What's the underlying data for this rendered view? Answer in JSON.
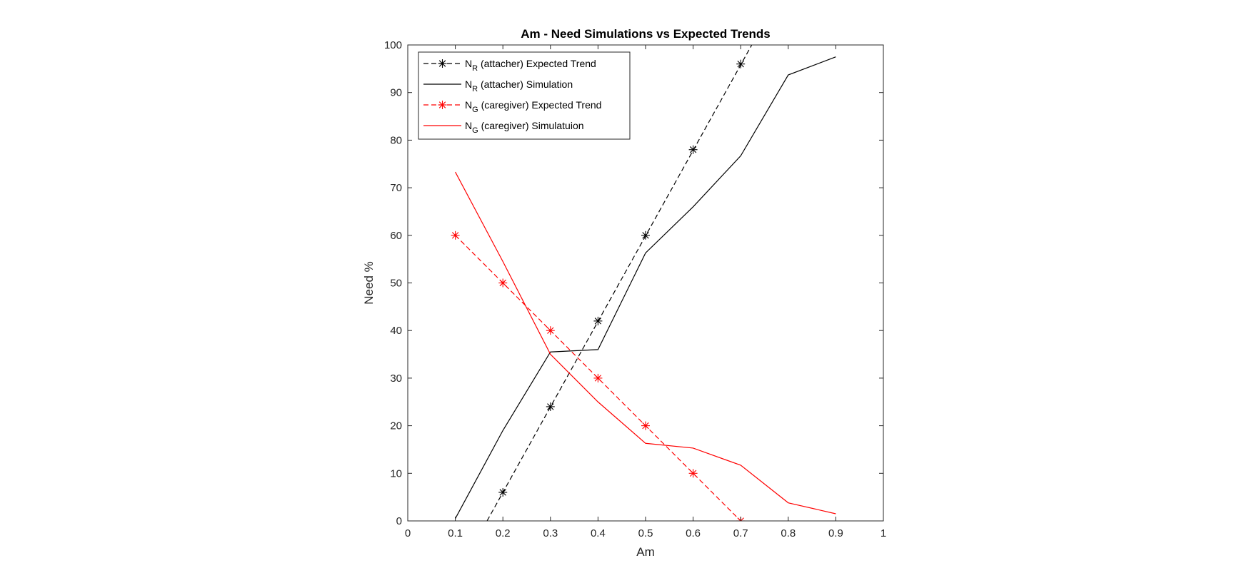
{
  "chart_data": {
    "type": "line",
    "title": "Am - Need Simulations vs Expected Trends",
    "xlabel": "Am",
    "ylabel": "Need %",
    "xlim": [
      0,
      1
    ],
    "ylim": [
      0,
      100
    ],
    "xticks": [
      "0",
      "0.1",
      "0.2",
      "0.3",
      "0.4",
      "0.5",
      "0.6",
      "0.7",
      "0.8",
      "0.9",
      "1"
    ],
    "yticks": [
      "0",
      "10",
      "20",
      "30",
      "40",
      "50",
      "60",
      "70",
      "80",
      "90",
      "100"
    ],
    "grid": false,
    "legend_position": "top-left",
    "series": [
      {
        "name": "N_R (attacher) Expected Trend",
        "name_main": "N",
        "name_sub": "R",
        "name_rest": " (attacher) Expected Trend",
        "color": "#000000",
        "dash": "dashed",
        "marker": "asterisk",
        "line_x": [
          0.1667,
          0.7233
        ],
        "line_y": [
          0,
          100
        ],
        "x": [
          0.2,
          0.3,
          0.4,
          0.5,
          0.6,
          0.7
        ],
        "y": [
          6,
          24,
          42,
          60,
          78,
          96
        ]
      },
      {
        "name": "N_R (attacher) Simulation",
        "name_main": "N",
        "name_sub": "R",
        "name_rest": " (attacher) Simulation",
        "color": "#000000",
        "dash": "solid",
        "marker": "none",
        "x": [
          0.1,
          0.2,
          0.3,
          0.4,
          0.5,
          0.6,
          0.7,
          0.8,
          0.9
        ],
        "y": [
          0.5,
          19,
          35.5,
          36,
          56.3,
          66,
          76.7,
          93.7,
          97.5
        ]
      },
      {
        "name": "N_G (caregiver) Expected Trend",
        "name_main": "N",
        "name_sub": "G",
        "name_rest": " (caregiver) Expected Trend",
        "color": "#ff0000",
        "dash": "dashed",
        "marker": "asterisk",
        "x": [
          0.1,
          0.2,
          0.3,
          0.4,
          0.5,
          0.6,
          0.7
        ],
        "y": [
          60,
          50,
          40,
          30,
          20,
          10,
          0
        ]
      },
      {
        "name": "N_G (caregiver) Simulatuion",
        "name_main": "N",
        "name_sub": "G",
        "name_rest": " (caregiver) Simulatuion",
        "color": "#ff0000",
        "dash": "solid",
        "marker": "none",
        "x": [
          0.1,
          0.2,
          0.3,
          0.4,
          0.5,
          0.6,
          0.7,
          0.8,
          0.9
        ],
        "y": [
          73.3,
          54.5,
          35,
          25,
          16.3,
          15.3,
          11.7,
          3.8,
          1.5
        ]
      }
    ]
  }
}
